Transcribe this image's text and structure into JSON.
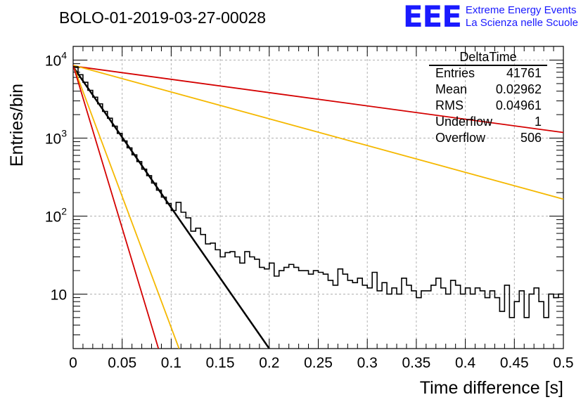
{
  "branding": {
    "logo": "EEE",
    "line1": "Extreme Energy Events",
    "line2": "La Scienza nelle Scuole",
    "color": "#1a1aff"
  },
  "chart_data": {
    "type": "line",
    "title": "BOLO-01-2019-03-27-00028",
    "xlabel": "Time difference [s]",
    "ylabel": "Entries/bin",
    "xlim": [
      0,
      0.5
    ],
    "ylim": [
      2,
      15000
    ],
    "yscale": "log",
    "grid": true,
    "x_ticks": [
      "0",
      "0.05",
      "0.1",
      "0.15",
      "0.2",
      "0.25",
      "0.3",
      "0.35",
      "0.4",
      "0.45",
      "0.5"
    ],
    "x_tick_values": [
      0,
      0.05,
      0.1,
      0.15,
      0.2,
      0.25,
      0.3,
      0.35,
      0.4,
      0.45,
      0.5
    ],
    "y_ticks": [
      {
        "value": 10,
        "base": "10",
        "exp": ""
      },
      {
        "value": 100,
        "base": "10",
        "exp": "2"
      },
      {
        "value": 1000,
        "base": "10",
        "exp": "3"
      },
      {
        "value": 10000,
        "base": "10",
        "exp": "4"
      }
    ],
    "histogram": {
      "name": "DeltaTime",
      "bin_width": 0.005,
      "values": [
        8200,
        6500,
        5200,
        4100,
        3350,
        2750,
        2200,
        1800,
        1420,
        1150,
        920,
        750,
        610,
        500,
        400,
        330,
        265,
        215,
        175,
        145,
        118,
        150,
        112,
        95,
        64,
        70,
        58,
        44,
        45,
        37,
        30,
        34,
        35,
        30,
        25,
        35,
        30,
        28,
        22,
        21,
        25,
        17,
        20,
        22,
        24,
        22,
        20,
        20,
        18,
        20,
        19,
        18,
        15,
        13,
        21,
        18,
        15,
        14,
        16,
        13,
        12,
        19,
        11,
        14,
        10,
        12,
        10,
        16,
        13,
        11,
        9,
        11,
        11,
        13,
        16,
        12,
        10,
        15,
        13,
        10,
        12,
        10,
        12,
        11,
        9,
        11,
        9,
        6,
        13,
        5,
        8,
        11,
        5,
        10,
        12,
        8,
        5,
        10,
        9,
        10
      ]
    },
    "fits": [
      {
        "color": "#d40000",
        "x0": 0.0,
        "y0": 8400,
        "x1": 0.5,
        "y1": 1180
      },
      {
        "color": "#f5b800",
        "x0": 0.0,
        "y0": 8600,
        "x1": 0.5,
        "y1": 165
      },
      {
        "color": "#000000",
        "x0": 0.0,
        "y0": 8200,
        "x1": 0.2,
        "y1": 2
      },
      {
        "color": "#f5b800",
        "x0": 0.0,
        "y0": 8600,
        "x1": 0.108,
        "y1": 2
      },
      {
        "color": "#d40000",
        "x0": 0.0,
        "y0": 8600,
        "x1": 0.087,
        "y1": 2
      }
    ],
    "stats": {
      "title": "DeltaTime",
      "rows": [
        {
          "label": "Entries",
          "value": "41761"
        },
        {
          "label": "Mean",
          "value": "0.02962"
        },
        {
          "label": "RMS",
          "value": "0.04961"
        },
        {
          "label": "Underflow",
          "value": "1"
        },
        {
          "label": "Overflow",
          "value": "506"
        }
      ]
    }
  }
}
